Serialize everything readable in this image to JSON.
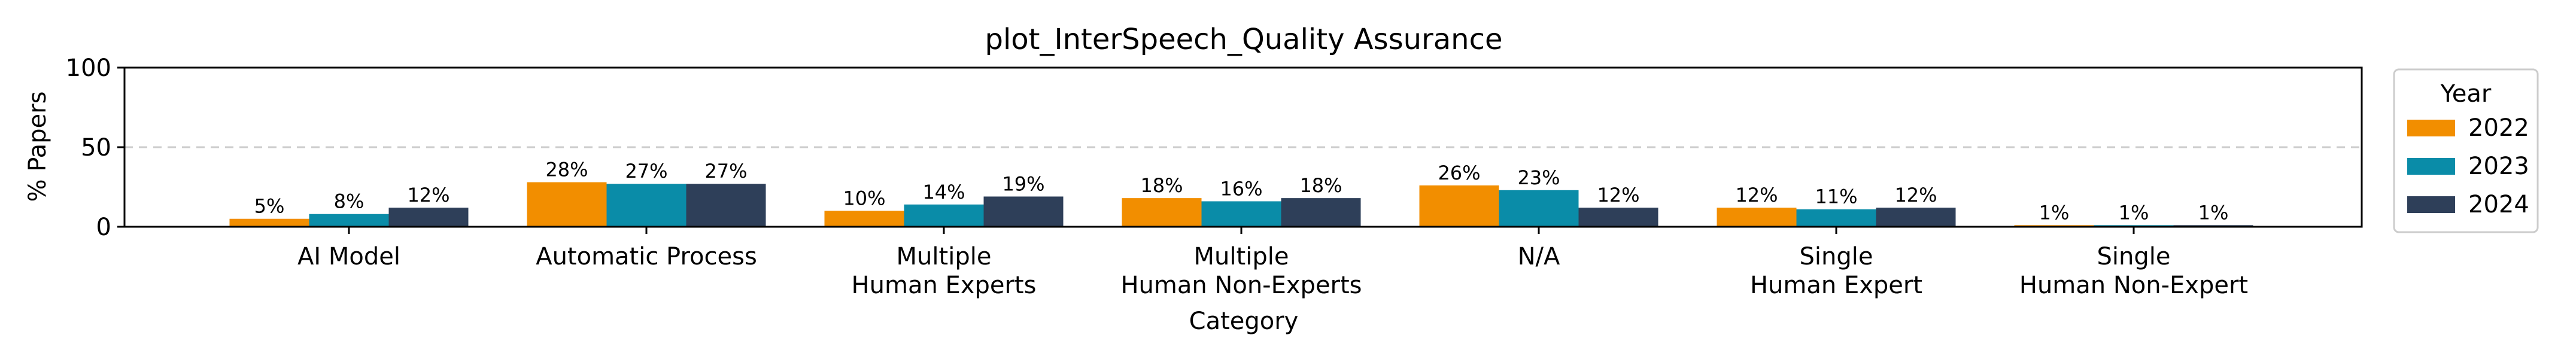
{
  "chart_data": {
    "type": "bar",
    "title": "plot_InterSpeech_Quality Assurance",
    "xlabel": "Category",
    "ylabel": "% Papers",
    "ylim": [
      0,
      100
    ],
    "yticks": [
      0,
      50,
      100
    ],
    "grid": "dashed horizontal at 50",
    "categories": [
      [
        "AI Model"
      ],
      [
        "Automatic Process"
      ],
      [
        "Multiple",
        "Human Experts"
      ],
      [
        "Multiple",
        "Human Non-Experts"
      ],
      [
        "N/A"
      ],
      [
        "Single",
        "Human Expert"
      ],
      [
        "Single",
        "Human Non-Expert"
      ]
    ],
    "series": [
      {
        "name": "2022",
        "color": "#F28E00",
        "values": [
          5,
          28,
          10,
          18,
          26,
          12,
          1
        ],
        "labels": [
          "5%",
          "28%",
          "10%",
          "18%",
          "26%",
          "12%",
          "1%"
        ]
      },
      {
        "name": "2023",
        "color": "#0A8CA8",
        "values": [
          8,
          27,
          14,
          16,
          23,
          11,
          1
        ],
        "labels": [
          "8%",
          "27%",
          "14%",
          "16%",
          "23%",
          "11%",
          "1%"
        ]
      },
      {
        "name": "2024",
        "color": "#2E3F59",
        "values": [
          12,
          27,
          19,
          18,
          12,
          12,
          1
        ],
        "labels": [
          "12%",
          "27%",
          "19%",
          "18%",
          "12%",
          "12%",
          "1%"
        ]
      }
    ],
    "legend": {
      "title": "Year",
      "placement": "outside-right"
    }
  }
}
